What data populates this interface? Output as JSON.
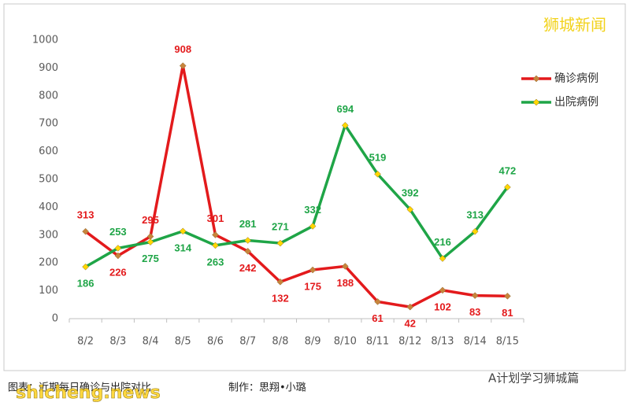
{
  "chart_data": {
    "type": "line",
    "categories": [
      "8/2",
      "8/3",
      "8/4",
      "8/5",
      "8/6",
      "8/7",
      "8/8",
      "8/9",
      "8/10",
      "8/11",
      "8/12",
      "8/13",
      "8/14",
      "8/15"
    ],
    "series": [
      {
        "name": "确诊病例",
        "color": "#e31a1c",
        "marker_color": "#c8843c",
        "values": [
          313,
          226,
          295,
          908,
          301,
          242,
          132,
          175,
          188,
          61,
          42,
          102,
          83,
          81
        ]
      },
      {
        "name": "出院病例",
        "color": "#1fa547",
        "marker_color": "#ffd700",
        "values": [
          186,
          253,
          275,
          314,
          263,
          281,
          271,
          332,
          694,
          519,
          392,
          216,
          313,
          472
        ]
      }
    ],
    "ylim": [
      0,
      1000
    ],
    "yticks": [
      0,
      100,
      200,
      300,
      400,
      500,
      600,
      700,
      800,
      900,
      1000
    ],
    "grid": false,
    "legend": "right"
  },
  "watermark": "狮城新闻",
  "caption": "图表：近期每日确诊与出院对比",
  "credit": "制作：思翔•小璐",
  "wechat": "A计划学习狮城篇",
  "site": "shicheng.news"
}
